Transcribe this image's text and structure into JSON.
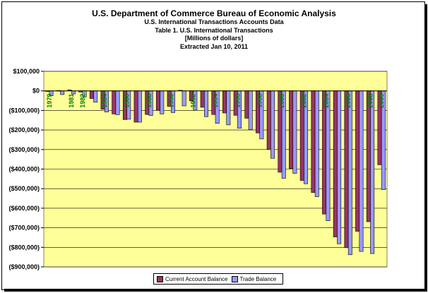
{
  "titles": {
    "line1": "U.S. Department of Commerce Bureau of Economic Analysis",
    "line2": "U.S. International Transactions Accounts Data",
    "line3": "Table 1. U.S. International Transactions",
    "line4": "[Millions of dollars]",
    "line5": "Extracted Jan 10, 2011"
  },
  "colors": {
    "plot_bg": "#ffff99",
    "current_account": "#993366",
    "trade_balance": "#9999ff"
  },
  "chart_data": {
    "type": "bar",
    "title": "U.S. Department of Commerce Bureau of Economic Analysis",
    "x": [
      1979,
      1980,
      1981,
      1982,
      1983,
      1984,
      1985,
      1986,
      1987,
      1988,
      1989,
      1990,
      1991,
      1992,
      1993,
      1994,
      1995,
      1996,
      1997,
      1998,
      1999,
      2000,
      2001,
      2002,
      2003,
      2004,
      2005,
      2006,
      2007,
      2008,
      2009
    ],
    "x_tick_labels": [
      "1979",
      "1981",
      "1982",
      "1984",
      "1986",
      "1988",
      "1990",
      "1992",
      "1994",
      "1996",
      "1998",
      "2000",
      "2002",
      "2004",
      "2006",
      "2008",
      "2009"
    ],
    "ylim": [
      -900000,
      100000
    ],
    "y_ticks": [
      100000,
      0,
      -100000,
      -200000,
      -300000,
      -400000,
      -500000,
      -600000,
      -700000,
      -800000,
      -900000
    ],
    "y_tick_labels": [
      "$100,000",
      "$0",
      "($100,000)",
      "($200,000)",
      "($300,000)",
      "($400,000)",
      "($500,000)",
      "($600,000)",
      "($700,000)",
      "($800,000)",
      "($900,000)"
    ],
    "series": [
      {
        "name": "Current Account Balance",
        "values": [
          -1000,
          2000,
          5000,
          -6000,
          -39000,
          -94000,
          -118000,
          -147000,
          -160000,
          -121000,
          -99000,
          -79000,
          3000,
          -51000,
          -84000,
          -121000,
          -113000,
          -125000,
          -140000,
          -215000,
          -300000,
          -416000,
          -397000,
          -458000,
          -520000,
          -630000,
          -747000,
          -802000,
          -718000,
          -669000,
          -378000
        ]
      },
      {
        "name": "Trade Balance",
        "values": [
          -25000,
          -19000,
          -16000,
          -31000,
          -58000,
          -108000,
          -122000,
          -145000,
          -160000,
          -126000,
          -118000,
          -111000,
          -77000,
          -96000,
          -132000,
          -166000,
          -174000,
          -191000,
          -198000,
          -246000,
          -345000,
          -447000,
          -422000,
          -475000,
          -541000,
          -664000,
          -782000,
          -838000,
          -821000,
          -832000,
          -505000
        ]
      }
    ],
    "grid": true,
    "legend": "bottom"
  }
}
